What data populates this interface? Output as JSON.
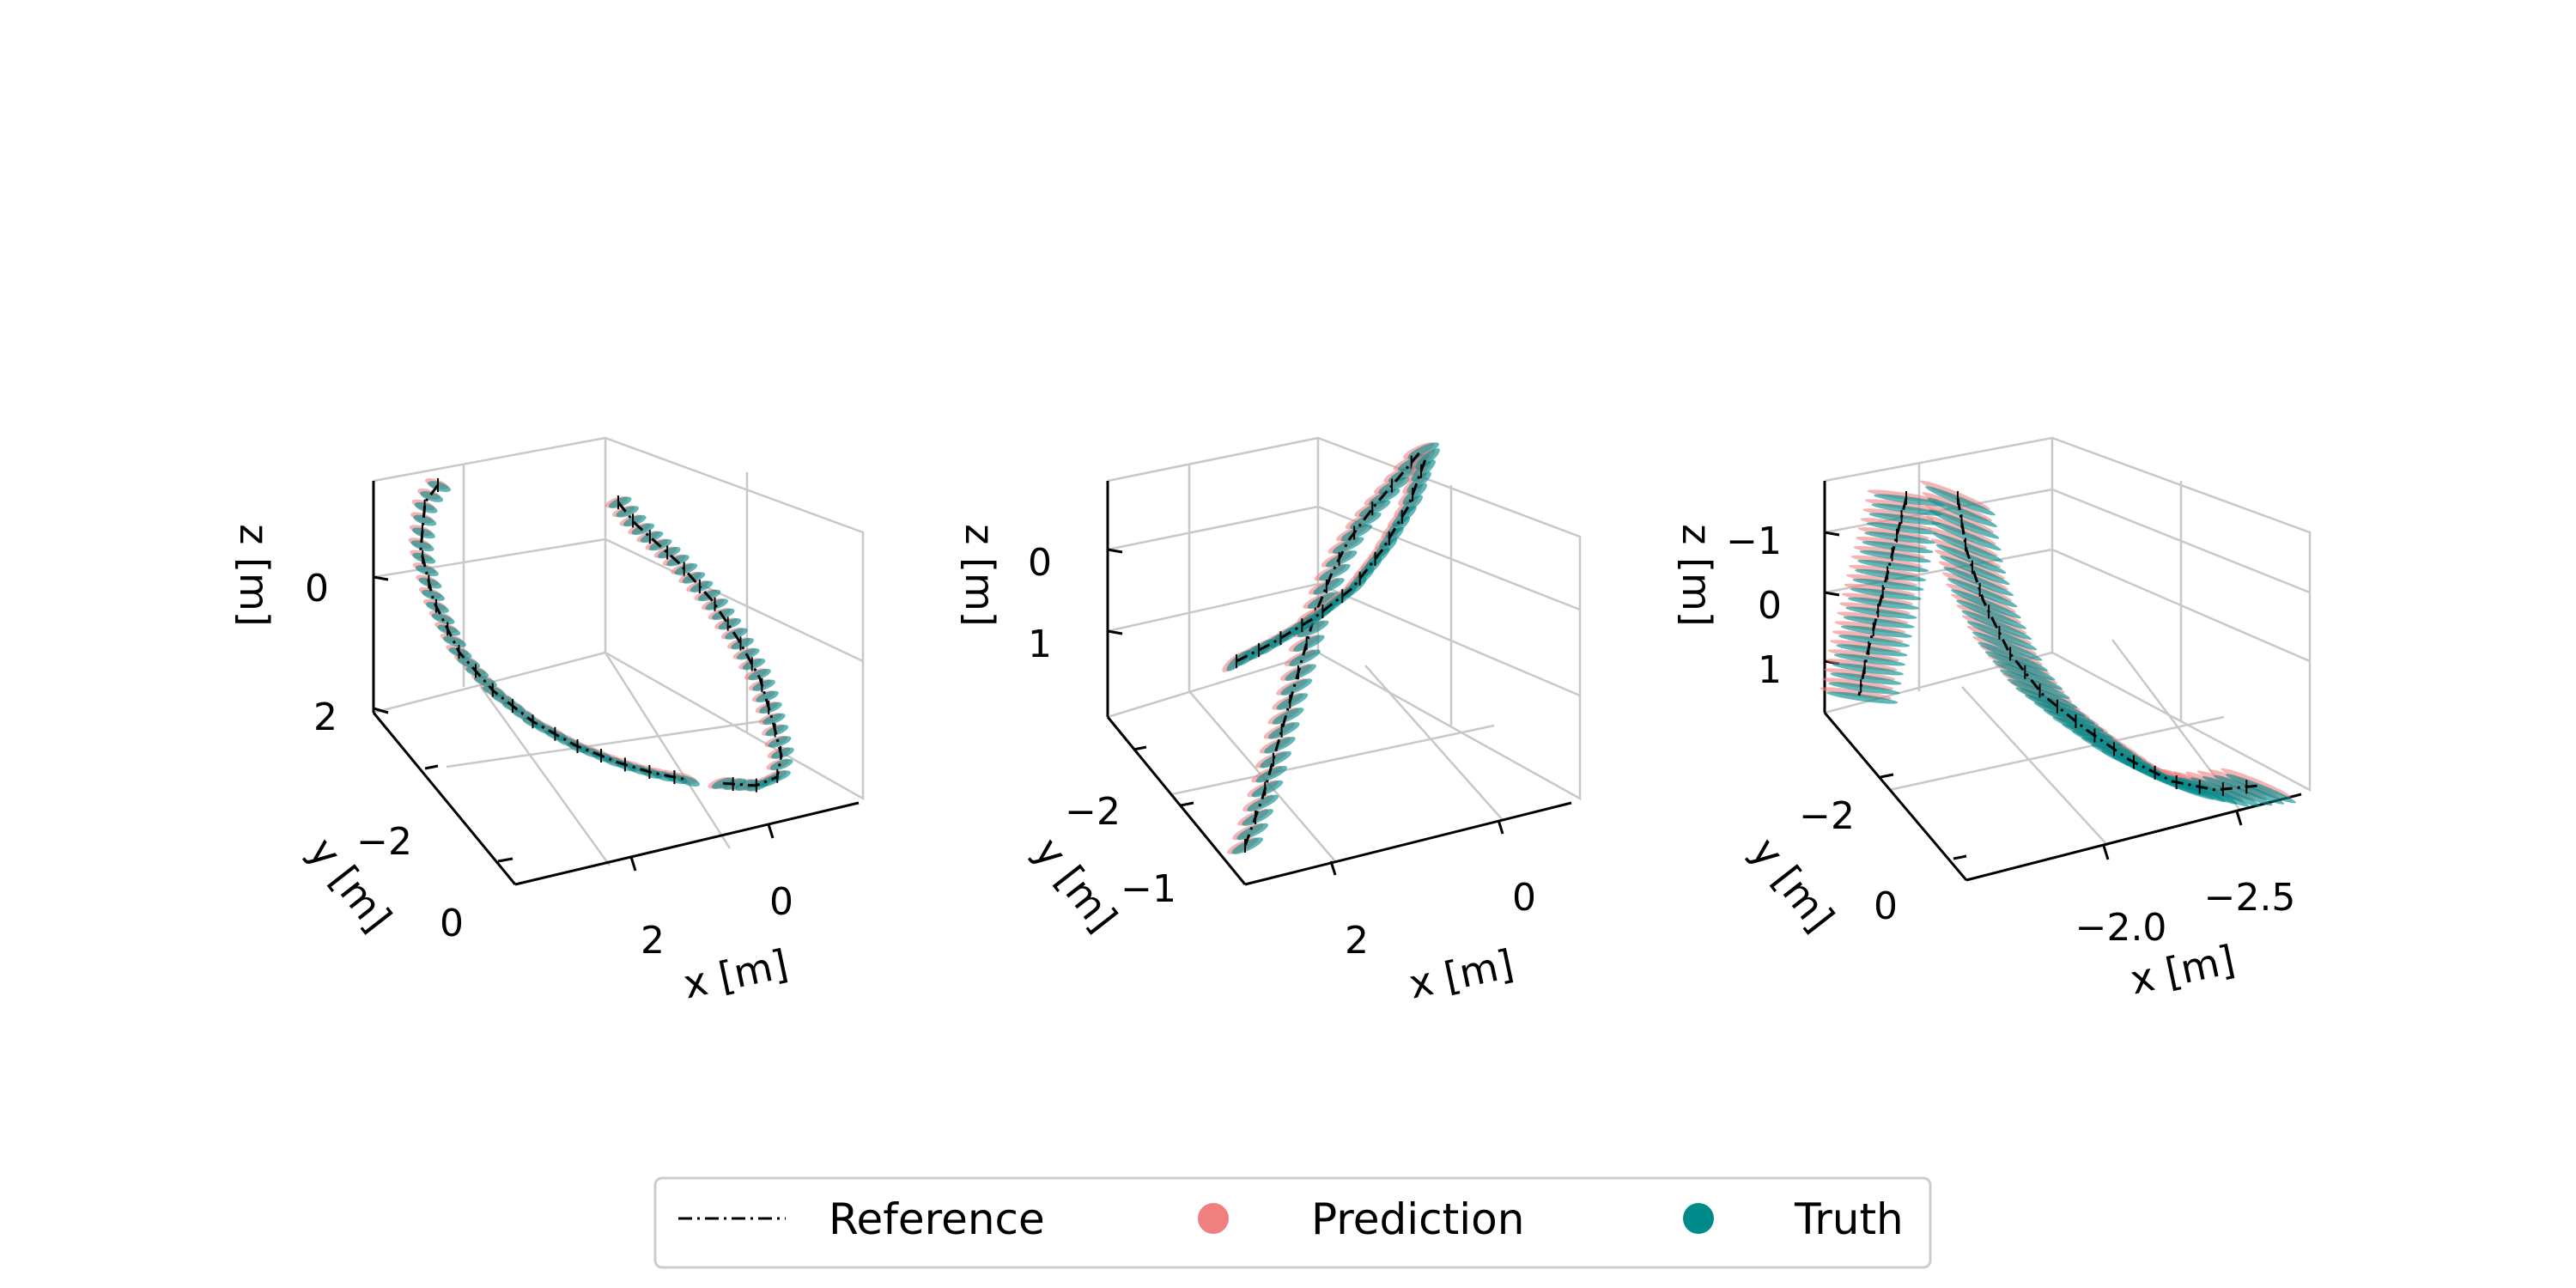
{
  "chart_data": [
    {
      "type": "line3d",
      "title": "",
      "xlabel": "x [m]",
      "ylabel": "y [m]",
      "zlabel": "z [m]",
      "xticks": [
        "2",
        "0"
      ],
      "yticks": [
        "−2",
        "0"
      ],
      "zticks": [
        "0",
        "2"
      ],
      "grid": true,
      "series": [
        {
          "name": "Reference",
          "style": "dash-dot",
          "color": "#000000"
        },
        {
          "name": "Prediction",
          "style": "ellipse-markers",
          "color": "#f08080"
        },
        {
          "name": "Truth",
          "style": "ellipse-markers",
          "color": "#008b8b"
        }
      ]
    },
    {
      "type": "line3d",
      "title": "",
      "xlabel": "x [m]",
      "ylabel": "y [m]",
      "zlabel": "z [m]",
      "xticks": [
        "2",
        "0"
      ],
      "yticks": [
        "−2",
        "−1"
      ],
      "zticks": [
        "0",
        "1"
      ],
      "grid": true,
      "series": [
        {
          "name": "Reference",
          "style": "dash-dot",
          "color": "#000000"
        },
        {
          "name": "Prediction",
          "style": "ellipse-markers",
          "color": "#f08080"
        },
        {
          "name": "Truth",
          "style": "ellipse-markers",
          "color": "#008b8b"
        }
      ]
    },
    {
      "type": "line3d",
      "title": "",
      "xlabel": "x [m]",
      "ylabel": "y [m]",
      "zlabel": "z [m]",
      "xticks": [
        "−2.0",
        "−2.5"
      ],
      "yticks": [
        "−2",
        "0"
      ],
      "zticks": [
        "−1",
        "0",
        "1"
      ],
      "grid": true,
      "series": [
        {
          "name": "Reference",
          "style": "dash-dot",
          "color": "#000000"
        },
        {
          "name": "Prediction",
          "style": "ellipse-markers",
          "color": "#f08080"
        },
        {
          "name": "Truth",
          "style": "ellipse-markers",
          "color": "#008b8b"
        }
      ]
    }
  ],
  "legend": {
    "placement": "bottom-center",
    "items": [
      {
        "label": "Reference",
        "marker": "dash-dot",
        "color": "#000000"
      },
      {
        "label": "Prediction",
        "marker": "circle",
        "color": "#f08080"
      },
      {
        "label": "Truth",
        "marker": "circle",
        "color": "#008b8b"
      }
    ]
  }
}
